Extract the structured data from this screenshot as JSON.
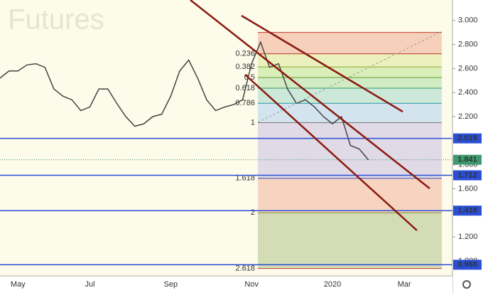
{
  "chart_data": {
    "type": "line",
    "title": "s Futures",
    "categories": [
      null,
      null,
      "May",
      null,
      null,
      null,
      null,
      null,
      null,
      null,
      "Jul",
      null,
      null,
      null,
      null,
      null,
      null,
      null,
      null,
      "Sep",
      null,
      null,
      null,
      null,
      null,
      null,
      null,
      null,
      "Nov",
      null,
      null,
      null,
      null,
      null,
      null,
      null,
      null,
      "2020",
      null,
      null,
      null,
      null,
      null,
      null,
      null,
      "Mar",
      null,
      null,
      null,
      null,
      null
    ],
    "series": [
      {
        "color": "#444444",
        "values": [
          2.52,
          2.58,
          2.58,
          2.63,
          2.64,
          2.61,
          2.43,
          2.37,
          2.34,
          2.25,
          2.28,
          2.43,
          2.43,
          2.31,
          2.2,
          2.12,
          2.14,
          2.2,
          2.22,
          2.37,
          2.58,
          2.67,
          2.52,
          2.34,
          2.25,
          2.28,
          2.3,
          2.34,
          2.64,
          2.82,
          2.61,
          2.64,
          2.43,
          2.31,
          2.34,
          2.28,
          2.2,
          2.14,
          2.2,
          1.96,
          1.93,
          1.84,
          null,
          null,
          null,
          null,
          null,
          null,
          null,
          null,
          null
        ]
      }
    ],
    "ylim": [
      0.875,
      3.17
    ],
    "yticks": [
      {
        "value": 1.0,
        "label": "1.000"
      },
      {
        "value": 1.2,
        "label": "1.200"
      },
      {
        "value": 1.4,
        "label": "1.400"
      },
      {
        "value": 1.6,
        "label": "1.600"
      },
      {
        "value": 1.8,
        "label": "1.800"
      },
      {
        "value": 2.0,
        "label": "2.000"
      },
      {
        "value": 2.2,
        "label": "2.200"
      },
      {
        "value": 2.4,
        "label": "2.400"
      },
      {
        "value": 2.6,
        "label": "2.600"
      },
      {
        "value": 2.8,
        "label": "2.800"
      },
      {
        "value": 3.0,
        "label": "3.000"
      }
    ],
    "levels": {
      "color": "#2a4fd6",
      "values": [
        2.019,
        1.712,
        1.418,
        0.968
      ]
    },
    "last_price": {
      "value": 1.841,
      "color": "#3d9a6e"
    },
    "fib": {
      "high": 2.9,
      "low": 2.15,
      "ratios": [
        0,
        0.236,
        0.382,
        0.5,
        0.618,
        0.786,
        1,
        1.618,
        2,
        2.618
      ],
      "colors": [
        "#f5c8b2",
        "#e6eeb4",
        "#d4ebb0",
        "#c9e8bd",
        "#c3e4d6",
        "#cddff0",
        "#d9d4e4",
        "#f6cdb8",
        "#cdd6ab"
      ],
      "label_colors": [
        "#c0392b",
        "#c0392b",
        "#8aa52a",
        "#5d9e2e",
        "#2e9e5d",
        "#2a9aa8",
        "#777777",
        "#3a4fb8",
        "#7a8f3a",
        "#c0392b"
      ]
    }
  }
}
